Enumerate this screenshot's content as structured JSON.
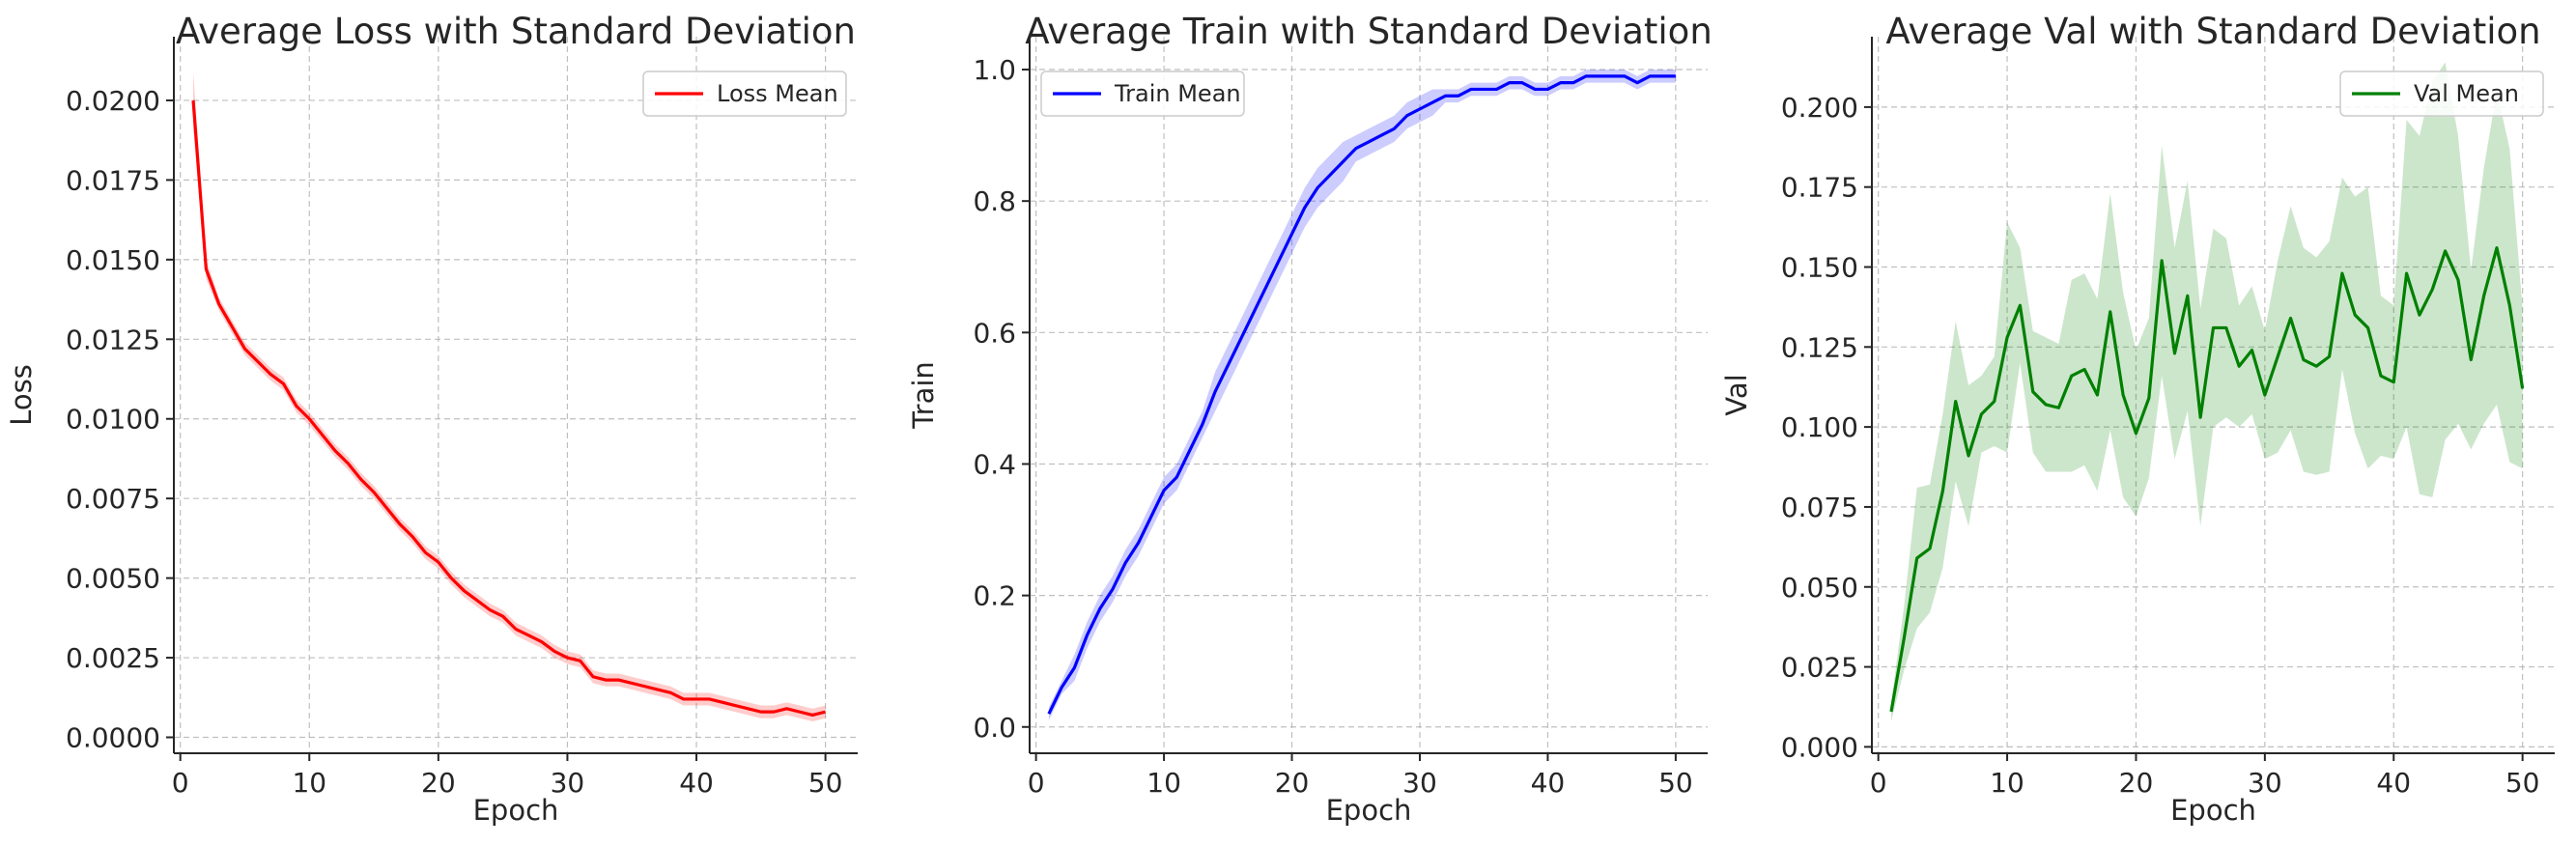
{
  "chart_data": [
    {
      "type": "line",
      "title": "Average Loss with Standard Deviation",
      "xlabel": "Epoch",
      "ylabel": "Loss",
      "xlim": [
        -0.5,
        52.5
      ],
      "ylim": [
        -0.0005,
        0.022
      ],
      "xticks": [
        0,
        10,
        20,
        30,
        40,
        50
      ],
      "xtick_labels": [
        "0",
        "10",
        "20",
        "30",
        "40",
        "50"
      ],
      "yticks": [
        0,
        0.0025,
        0.005,
        0.0075,
        0.01,
        0.0125,
        0.015,
        0.0175,
        0.02
      ],
      "ytick_labels": [
        "0.0000",
        "0.0025",
        "0.0050",
        "0.0075",
        "0.0100",
        "0.0125",
        "0.0150",
        "0.0175",
        "0.0200"
      ],
      "grid": true,
      "legend_position": "top-right",
      "color": "#ff0000",
      "band_color": "#ff0000",
      "series": [
        {
          "name": "Loss Mean",
          "x": [
            1,
            2,
            3,
            4,
            5,
            6,
            7,
            8,
            9,
            10,
            11,
            12,
            13,
            14,
            15,
            16,
            17,
            18,
            19,
            20,
            21,
            22,
            23,
            24,
            25,
            26,
            27,
            28,
            29,
            30,
            31,
            32,
            33,
            34,
            35,
            36,
            37,
            38,
            39,
            40,
            41,
            42,
            43,
            44,
            45,
            46,
            47,
            48,
            49,
            50
          ],
          "values": [
            0.02,
            0.0147,
            0.0136,
            0.0129,
            0.0122,
            0.0118,
            0.0114,
            0.0111,
            0.0104,
            0.01,
            0.0095,
            0.009,
            0.0086,
            0.0081,
            0.0077,
            0.0072,
            0.0067,
            0.0063,
            0.0058,
            0.0055,
            0.005,
            0.0046,
            0.0043,
            0.004,
            0.0038,
            0.0034,
            0.0032,
            0.003,
            0.0027,
            0.0025,
            0.0024,
            0.0019,
            0.0018,
            0.0018,
            0.0017,
            0.0016,
            0.0015,
            0.0014,
            0.0012,
            0.0012,
            0.0012,
            0.0011,
            0.001,
            0.0009,
            0.0008,
            0.0008,
            0.0009,
            0.0008,
            0.0007,
            0.0008
          ],
          "std": [
            0.0009,
            0.0003,
            0.0002,
            0.0002,
            0.0002,
            0.0002,
            0.0002,
            0.0002,
            0.0002,
            0.0002,
            0.0002,
            0.0002,
            0.0002,
            0.0002,
            0.0002,
            0.0002,
            0.0002,
            0.0002,
            0.0002,
            0.0002,
            0.0002,
            0.0002,
            0.0002,
            0.0002,
            0.0002,
            0.0002,
            0.0002,
            0.0002,
            0.0002,
            0.0002,
            0.0002,
            0.0002,
            0.0002,
            0.0002,
            0.0002,
            0.0002,
            0.0002,
            0.0002,
            0.0002,
            0.0002,
            0.0002,
            0.0002,
            0.0002,
            0.0002,
            0.0002,
            0.0002,
            0.0002,
            0.0002,
            0.0002,
            0.0002
          ]
        }
      ]
    },
    {
      "type": "line",
      "title": "Average Train with Standard Deviation",
      "xlabel": "Epoch",
      "ylabel": "Train",
      "xlim": [
        -0.5,
        52.5
      ],
      "ylim": [
        -0.04,
        1.05
      ],
      "xticks": [
        0,
        10,
        20,
        30,
        40,
        50
      ],
      "xtick_labels": [
        "0",
        "10",
        "20",
        "30",
        "40",
        "50"
      ],
      "yticks": [
        0,
        0.2,
        0.4,
        0.6,
        0.8,
        1.0
      ],
      "ytick_labels": [
        "0.0",
        "0.2",
        "0.4",
        "0.6",
        "0.8",
        "1.0"
      ],
      "grid": true,
      "legend_position": "top-left",
      "color": "#0000ff",
      "band_color": "#0000ff",
      "series": [
        {
          "name": "Train Mean",
          "x": [
            1,
            2,
            3,
            4,
            5,
            6,
            7,
            8,
            9,
            10,
            11,
            12,
            13,
            14,
            15,
            16,
            17,
            18,
            19,
            20,
            21,
            22,
            23,
            24,
            25,
            26,
            27,
            28,
            29,
            30,
            31,
            32,
            33,
            34,
            35,
            36,
            37,
            38,
            39,
            40,
            41,
            42,
            43,
            44,
            45,
            46,
            47,
            48,
            49,
            50
          ],
          "values": [
            0.02,
            0.06,
            0.09,
            0.14,
            0.18,
            0.21,
            0.25,
            0.28,
            0.32,
            0.36,
            0.38,
            0.42,
            0.46,
            0.51,
            0.55,
            0.59,
            0.63,
            0.67,
            0.71,
            0.75,
            0.79,
            0.82,
            0.84,
            0.86,
            0.88,
            0.89,
            0.9,
            0.91,
            0.93,
            0.94,
            0.95,
            0.96,
            0.96,
            0.97,
            0.97,
            0.97,
            0.98,
            0.98,
            0.97,
            0.97,
            0.98,
            0.98,
            0.99,
            0.99,
            0.99,
            0.99,
            0.98,
            0.99,
            0.99,
            0.99
          ],
          "std": [
            0.01,
            0.01,
            0.02,
            0.02,
            0.02,
            0.02,
            0.02,
            0.02,
            0.02,
            0.02,
            0.02,
            0.02,
            0.02,
            0.03,
            0.03,
            0.03,
            0.03,
            0.03,
            0.03,
            0.03,
            0.03,
            0.03,
            0.03,
            0.03,
            0.02,
            0.02,
            0.02,
            0.02,
            0.02,
            0.02,
            0.02,
            0.01,
            0.01,
            0.01,
            0.01,
            0.01,
            0.01,
            0.01,
            0.01,
            0.01,
            0.01,
            0.01,
            0.01,
            0.01,
            0.01,
            0.01,
            0.01,
            0.01,
            0.01,
            0.01
          ]
        }
      ]
    },
    {
      "type": "line",
      "title": "Average Val with Standard Deviation",
      "xlabel": "Epoch",
      "ylabel": "Val",
      "xlim": [
        -0.5,
        52.5
      ],
      "ylim": [
        -0.002,
        0.222
      ],
      "xticks": [
        0,
        10,
        20,
        30,
        40,
        50
      ],
      "xtick_labels": [
        "0",
        "10",
        "20",
        "30",
        "40",
        "50"
      ],
      "yticks": [
        0,
        0.025,
        0.05,
        0.075,
        0.1,
        0.125,
        0.15,
        0.175,
        0.2
      ],
      "ytick_labels": [
        "0.000",
        "0.025",
        "0.050",
        "0.075",
        "0.100",
        "0.125",
        "0.150",
        "0.175",
        "0.200"
      ],
      "grid": true,
      "legend_position": "top-right",
      "color": "#008000",
      "band_color": "#008000",
      "series": [
        {
          "name": "Val Mean",
          "x": [
            1,
            2,
            3,
            4,
            5,
            6,
            7,
            8,
            9,
            10,
            11,
            12,
            13,
            14,
            15,
            16,
            17,
            18,
            19,
            20,
            21,
            22,
            23,
            24,
            25,
            26,
            27,
            28,
            29,
            30,
            31,
            32,
            33,
            34,
            35,
            36,
            37,
            38,
            39,
            40,
            41,
            42,
            43,
            44,
            45,
            46,
            47,
            48,
            49,
            50
          ],
          "values": [
            0.011,
            0.034,
            0.059,
            0.062,
            0.08,
            0.108,
            0.091,
            0.104,
            0.108,
            0.128,
            0.138,
            0.111,
            0.107,
            0.106,
            0.116,
            0.118,
            0.11,
            0.136,
            0.11,
            0.098,
            0.109,
            0.152,
            0.123,
            0.141,
            0.103,
            0.131,
            0.131,
            0.119,
            0.124,
            0.11,
            0.122,
            0.134,
            0.121,
            0.119,
            0.122,
            0.148,
            0.135,
            0.131,
            0.116,
            0.114,
            0.148,
            0.135,
            0.143,
            0.155,
            0.146,
            0.121,
            0.141,
            0.156,
            0.138,
            0.112
          ],
          "std": [
            0.003,
            0.01,
            0.022,
            0.02,
            0.024,
            0.025,
            0.022,
            0.012,
            0.014,
            0.036,
            0.018,
            0.019,
            0.021,
            0.02,
            0.03,
            0.03,
            0.03,
            0.037,
            0.032,
            0.026,
            0.025,
            0.036,
            0.033,
            0.036,
            0.034,
            0.031,
            0.028,
            0.019,
            0.02,
            0.02,
            0.03,
            0.035,
            0.035,
            0.034,
            0.036,
            0.03,
            0.037,
            0.044,
            0.025,
            0.024,
            0.048,
            0.056,
            0.065,
            0.059,
            0.045,
            0.028,
            0.04,
            0.049,
            0.049,
            0.025
          ]
        }
      ]
    }
  ]
}
